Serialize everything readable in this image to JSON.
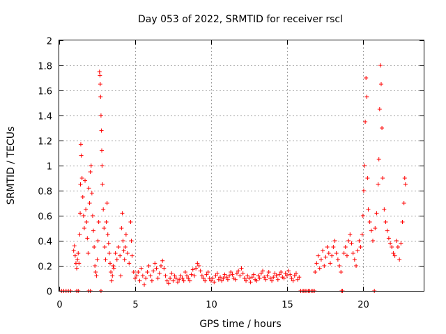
{
  "chart_data": {
    "type": "scatter",
    "title": "Day 053 of 2022, SRMTID for receiver rscl",
    "xlabel": "GPS time / hours",
    "ylabel": "SRMTID / TECUs",
    "xlim": [
      0,
      24
    ],
    "ylim": [
      0,
      2
    ],
    "xticks": [
      0,
      5,
      10,
      15,
      20
    ],
    "xtick_labels": [
      "0",
      "5",
      "10",
      "15",
      "20"
    ],
    "yticks": [
      0,
      0.2,
      0.4,
      0.6,
      0.8,
      1,
      1.2,
      1.4,
      1.6,
      1.8,
      2
    ],
    "ytick_labels": [
      "0",
      "0.2",
      "0.4",
      "0.6",
      "0.8",
      "1",
      "1.2",
      "1.4",
      "1.6",
      "1.8",
      "2"
    ],
    "grid": true,
    "marker": "+",
    "marker_color": "#ff0000",
    "series": [
      {
        "name": "SRMTID",
        "points": [
          [
            0.15,
            0.0
          ],
          [
            0.3,
            0.0
          ],
          [
            0.45,
            0.0
          ],
          [
            0.6,
            0.0
          ],
          [
            0.75,
            0.0
          ],
          [
            1.15,
            0.0
          ],
          [
            1.25,
            0.0
          ],
          [
            1.95,
            0.0
          ],
          [
            2.05,
            0.0
          ],
          [
            2.75,
            0.0
          ],
          [
            0.95,
            0.32
          ],
          [
            1.0,
            0.36
          ],
          [
            1.05,
            0.28
          ],
          [
            1.1,
            0.22
          ],
          [
            1.15,
            0.18
          ],
          [
            1.2,
            0.25
          ],
          [
            1.25,
            0.3
          ],
          [
            1.3,
            0.22
          ],
          [
            1.35,
            0.45
          ],
          [
            1.38,
            0.62
          ],
          [
            1.4,
            0.85
          ],
          [
            1.42,
            1.17
          ],
          [
            1.45,
            1.08
          ],
          [
            1.5,
            0.9
          ],
          [
            1.55,
            0.75
          ],
          [
            1.6,
            0.6
          ],
          [
            1.65,
            0.5
          ],
          [
            1.7,
            0.88
          ],
          [
            1.75,
            0.65
          ],
          [
            1.8,
            0.55
          ],
          [
            1.85,
            0.42
          ],
          [
            1.9,
            0.3
          ],
          [
            1.95,
            0.82
          ],
          [
            2.0,
            0.7
          ],
          [
            2.05,
            0.95
          ],
          [
            2.1,
            1.0
          ],
          [
            2.15,
            0.78
          ],
          [
            2.2,
            0.6
          ],
          [
            2.25,
            0.48
          ],
          [
            2.3,
            0.35
          ],
          [
            2.35,
            0.2
          ],
          [
            2.4,
            0.15
          ],
          [
            2.45,
            0.12
          ],
          [
            2.5,
            0.25
          ],
          [
            2.55,
            0.4
          ],
          [
            2.6,
            0.55
          ],
          [
            2.65,
            1.75
          ],
          [
            2.68,
            1.72
          ],
          [
            2.7,
            1.65
          ],
          [
            2.72,
            1.55
          ],
          [
            2.75,
            1.4
          ],
          [
            2.78,
            1.28
          ],
          [
            2.8,
            1.12
          ],
          [
            2.82,
            1.0
          ],
          [
            2.85,
            0.85
          ],
          [
            2.9,
            0.65
          ],
          [
            2.95,
            0.5
          ],
          [
            3.0,
            0.35
          ],
          [
            3.05,
            0.25
          ],
          [
            3.1,
            0.55
          ],
          [
            3.15,
            0.7
          ],
          [
            3.2,
            0.45
          ],
          [
            3.25,
            0.38
          ],
          [
            3.3,
            0.3
          ],
          [
            3.35,
            0.22
          ],
          [
            3.4,
            0.15
          ],
          [
            3.45,
            0.08
          ],
          [
            3.5,
            0.12
          ],
          [
            3.55,
            0.2
          ],
          [
            3.6,
            0.18
          ],
          [
            3.7,
            0.3
          ],
          [
            3.8,
            0.25
          ],
          [
            3.9,
            0.35
          ],
          [
            4.0,
            0.28
          ],
          [
            4.05,
            0.12
          ],
          [
            4.1,
            0.5
          ],
          [
            4.15,
            0.62
          ],
          [
            4.2,
            0.4
          ],
          [
            4.25,
            0.32
          ],
          [
            4.3,
            0.25
          ],
          [
            4.35,
            0.35
          ],
          [
            4.4,
            0.45
          ],
          [
            4.5,
            0.3
          ],
          [
            4.6,
            0.22
          ],
          [
            4.7,
            0.55
          ],
          [
            4.75,
            0.4
          ],
          [
            4.8,
            0.28
          ],
          [
            4.9,
            0.15
          ],
          [
            5.0,
            0.1
          ],
          [
            5.1,
            0.12
          ],
          [
            5.2,
            0.15
          ],
          [
            5.3,
            0.08
          ],
          [
            5.4,
            0.18
          ],
          [
            5.5,
            0.12
          ],
          [
            5.6,
            0.05
          ],
          [
            5.7,
            0.1
          ],
          [
            5.8,
            0.15
          ],
          [
            5.9,
            0.2
          ],
          [
            6.0,
            0.12
          ],
          [
            6.1,
            0.08
          ],
          [
            6.2,
            0.16
          ],
          [
            6.3,
            0.22
          ],
          [
            6.4,
            0.18
          ],
          [
            6.5,
            0.1
          ],
          [
            6.6,
            0.14
          ],
          [
            6.7,
            0.2
          ],
          [
            6.8,
            0.24
          ],
          [
            6.9,
            0.18
          ],
          [
            7.0,
            0.12
          ],
          [
            7.1,
            0.08
          ],
          [
            7.2,
            0.06
          ],
          [
            7.3,
            0.1
          ],
          [
            7.4,
            0.14
          ],
          [
            7.5,
            0.08
          ],
          [
            7.6,
            0.12
          ],
          [
            7.7,
            0.1
          ],
          [
            7.8,
            0.07
          ],
          [
            7.9,
            0.09
          ],
          [
            8.0,
            0.12
          ],
          [
            8.1,
            0.1
          ],
          [
            8.2,
            0.08
          ],
          [
            8.3,
            0.15
          ],
          [
            8.4,
            0.12
          ],
          [
            8.5,
            0.1
          ],
          [
            8.6,
            0.08
          ],
          [
            8.7,
            0.13
          ],
          [
            8.8,
            0.17
          ],
          [
            8.9,
            0.12
          ],
          [
            9.0,
            0.18
          ],
          [
            9.1,
            0.22
          ],
          [
            9.2,
            0.2
          ],
          [
            9.3,
            0.16
          ],
          [
            9.4,
            0.12
          ],
          [
            9.5,
            0.1
          ],
          [
            9.6,
            0.08
          ],
          [
            9.7,
            0.13
          ],
          [
            9.8,
            0.15
          ],
          [
            9.9,
            0.1
          ],
          [
            10.0,
            0.08
          ],
          [
            10.1,
            0.1
          ],
          [
            10.2,
            0.07
          ],
          [
            10.3,
            0.12
          ],
          [
            10.4,
            0.14
          ],
          [
            10.5,
            0.09
          ],
          [
            10.6,
            0.11
          ],
          [
            10.7,
            0.08
          ],
          [
            10.8,
            0.1
          ],
          [
            10.9,
            0.13
          ],
          [
            11.0,
            0.11
          ],
          [
            11.1,
            0.09
          ],
          [
            11.2,
            0.12
          ],
          [
            11.3,
            0.15
          ],
          [
            11.4,
            0.13
          ],
          [
            11.5,
            0.1
          ],
          [
            11.6,
            0.09
          ],
          [
            11.7,
            0.14
          ],
          [
            11.8,
            0.16
          ],
          [
            11.9,
            0.12
          ],
          [
            12.0,
            0.18
          ],
          [
            12.1,
            0.14
          ],
          [
            12.2,
            0.1
          ],
          [
            12.3,
            0.08
          ],
          [
            12.4,
            0.12
          ],
          [
            12.5,
            0.1
          ],
          [
            12.6,
            0.07
          ],
          [
            12.7,
            0.11
          ],
          [
            12.8,
            0.13
          ],
          [
            12.9,
            0.09
          ],
          [
            13.0,
            0.08
          ],
          [
            13.1,
            0.12
          ],
          [
            13.2,
            0.1
          ],
          [
            13.3,
            0.14
          ],
          [
            13.4,
            0.16
          ],
          [
            13.5,
            0.11
          ],
          [
            13.6,
            0.09
          ],
          [
            13.7,
            0.12
          ],
          [
            13.8,
            0.15
          ],
          [
            13.9,
            0.1
          ],
          [
            14.0,
            0.08
          ],
          [
            14.1,
            0.11
          ],
          [
            14.2,
            0.14
          ],
          [
            14.3,
            0.12
          ],
          [
            14.4,
            0.09
          ],
          [
            14.5,
            0.13
          ],
          [
            14.6,
            0.15
          ],
          [
            14.7,
            0.11
          ],
          [
            14.8,
            0.1
          ],
          [
            14.9,
            0.14
          ],
          [
            15.0,
            0.12
          ],
          [
            15.1,
            0.16
          ],
          [
            15.2,
            0.13
          ],
          [
            15.3,
            0.1
          ],
          [
            15.4,
            0.08
          ],
          [
            15.5,
            0.12
          ],
          [
            15.6,
            0.14
          ],
          [
            15.7,
            0.09
          ],
          [
            15.8,
            0.11
          ],
          [
            15.9,
            0.0
          ],
          [
            16.0,
            0.0
          ],
          [
            16.1,
            0.0
          ],
          [
            16.2,
            0.0
          ],
          [
            16.3,
            0.0
          ],
          [
            16.4,
            0.0
          ],
          [
            16.5,
            0.0
          ],
          [
            16.6,
            0.0
          ],
          [
            16.7,
            0.0
          ],
          [
            16.8,
            0.0
          ],
          [
            16.85,
            0.15
          ],
          [
            16.95,
            0.22
          ],
          [
            17.05,
            0.28
          ],
          [
            17.15,
            0.18
          ],
          [
            17.25,
            0.25
          ],
          [
            17.35,
            0.32
          ],
          [
            17.45,
            0.2
          ],
          [
            17.55,
            0.27
          ],
          [
            17.65,
            0.35
          ],
          [
            17.75,
            0.3
          ],
          [
            17.85,
            0.22
          ],
          [
            17.95,
            0.28
          ],
          [
            18.05,
            0.35
          ],
          [
            18.15,
            0.4
          ],
          [
            18.25,
            0.3
          ],
          [
            18.35,
            0.25
          ],
          [
            18.45,
            0.2
          ],
          [
            18.55,
            0.15
          ],
          [
            18.6,
            0.0
          ],
          [
            18.65,
            0.0
          ],
          [
            18.75,
            0.3
          ],
          [
            18.85,
            0.35
          ],
          [
            18.95,
            0.28
          ],
          [
            19.05,
            0.4
          ],
          [
            19.15,
            0.45
          ],
          [
            19.25,
            0.38
          ],
          [
            19.35,
            0.3
          ],
          [
            19.45,
            0.25
          ],
          [
            19.55,
            0.2
          ],
          [
            19.65,
            0.32
          ],
          [
            19.75,
            0.4
          ],
          [
            19.85,
            0.35
          ],
          [
            19.95,
            0.45
          ],
          [
            20.0,
            0.6
          ],
          [
            20.05,
            0.8
          ],
          [
            20.1,
            1.0
          ],
          [
            20.15,
            1.35
          ],
          [
            20.2,
            1.7
          ],
          [
            20.25,
            1.55
          ],
          [
            20.3,
            0.9
          ],
          [
            20.35,
            0.65
          ],
          [
            20.45,
            0.55
          ],
          [
            20.55,
            0.48
          ],
          [
            20.65,
            0.4
          ],
          [
            20.75,
            0.0
          ],
          [
            20.8,
            0.5
          ],
          [
            20.9,
            0.62
          ],
          [
            21.0,
            0.85
          ],
          [
            21.05,
            1.05
          ],
          [
            21.1,
            1.45
          ],
          [
            21.15,
            1.8
          ],
          [
            21.2,
            1.65
          ],
          [
            21.25,
            1.3
          ],
          [
            21.3,
            0.9
          ],
          [
            21.4,
            0.65
          ],
          [
            21.5,
            0.55
          ],
          [
            21.6,
            0.48
          ],
          [
            21.7,
            0.42
          ],
          [
            21.8,
            0.38
          ],
          [
            21.9,
            0.35
          ],
          [
            22.0,
            0.3
          ],
          [
            22.1,
            0.28
          ],
          [
            22.2,
            0.4
          ],
          [
            22.3,
            0.35
          ],
          [
            22.4,
            0.25
          ],
          [
            22.5,
            0.38
          ],
          [
            22.6,
            0.55
          ],
          [
            22.7,
            0.7
          ],
          [
            22.75,
            0.9
          ],
          [
            22.8,
            0.85
          ]
        ]
      }
    ]
  }
}
